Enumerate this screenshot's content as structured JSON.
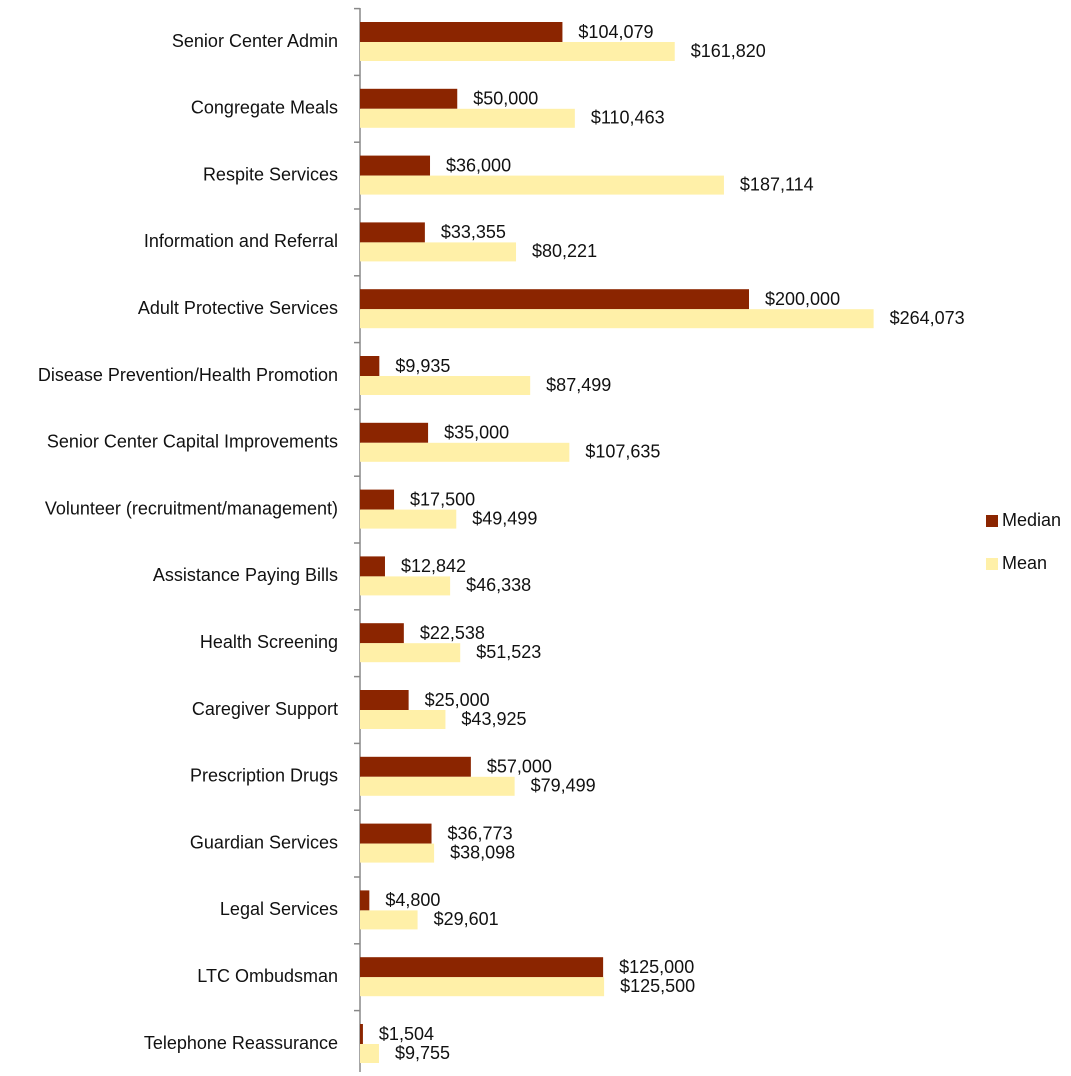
{
  "chart_data": {
    "type": "bar",
    "orientation": "horizontal",
    "categories": [
      "Senior Center Admin",
      "Congregate Meals",
      "Respite Services",
      "Information and Referral",
      "Adult Protective Services",
      "Disease Prevention/Health Promotion",
      "Senior Center Capital Improvements",
      "Volunteer (recruitment/management)",
      "Assistance Paying Bills",
      "Health Screening",
      "Caregiver Support",
      "Prescription Drugs",
      "Guardian Services",
      "Legal Services",
      "LTC Ombudsman",
      "Telephone Reassurance"
    ],
    "series": [
      {
        "name": "Median",
        "color": "#8b2500",
        "values": [
          104079,
          50000,
          36000,
          33355,
          200000,
          9935,
          35000,
          17500,
          12842,
          22538,
          25000,
          57000,
          36773,
          4800,
          125000,
          1504
        ],
        "value_labels": [
          "$104,079",
          "$50,000",
          "$36,000",
          "$33,355",
          "$200,000",
          "$9,935",
          "$35,000",
          "$17,500",
          "$12,842",
          "$22,538",
          "$25,000",
          "$57,000",
          "$36,773",
          "$4,800",
          "$125,000",
          "$1,504"
        ]
      },
      {
        "name": "Mean",
        "color": "#fff0a8",
        "values": [
          161820,
          110463,
          187114,
          80221,
          264073,
          87499,
          107635,
          49499,
          46338,
          51523,
          43925,
          79499,
          38098,
          29601,
          125500,
          9755
        ],
        "value_labels": [
          "$161,820",
          "$110,463",
          "$187,114",
          "$80,221",
          "$264,073",
          "$87,499",
          "$107,635",
          "$49,499",
          "$46,338",
          "$51,523",
          "$43,925",
          "$79,499",
          "$38,098",
          "$29,601",
          "$125,500",
          "$9,755"
        ]
      }
    ],
    "xlim": [
      0,
      300000
    ],
    "legend": "right"
  }
}
